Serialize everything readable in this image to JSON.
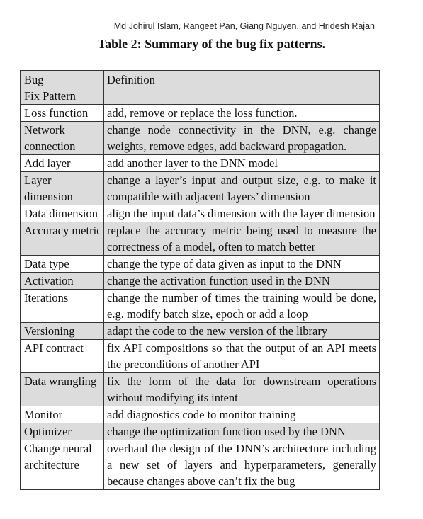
{
  "running_header": "Md Johirul Islam, Rangeet Pan, Giang Nguyen, and Hridesh Rajan",
  "caption": "Table 2: Summary of the bug fix patterns.",
  "table": {
    "header": {
      "col1_line1": "Bug",
      "col1_line2": "Fix Pattern",
      "col2": "Definition"
    },
    "rows": [
      {
        "pattern": "Loss function",
        "definition": "add, remove or replace the loss function.",
        "shaded": false
      },
      {
        "pattern": "Network connection",
        "definition": "change node connectivity in the DNN, e.g. change weights, remove edges, add backward propagation.",
        "shaded": true
      },
      {
        "pattern": "Add layer",
        "definition": "add another layer to the DNN model",
        "shaded": false
      },
      {
        "pattern": "Layer dimension",
        "definition": "change a layer’s input and output size, e.g. to make it compatible with adjacent layers’ dimension",
        "shaded": true
      },
      {
        "pattern": "Data dimension",
        "definition": "align the input data’s dimension with the layer dimension",
        "shaded": false
      },
      {
        "pattern": "Accuracy metric",
        "definition": "replace the accuracy metric being used to measure the correctness of a model, often to match better",
        "shaded": true
      },
      {
        "pattern": "Data type",
        "definition": "change the type of data given as input to the DNN",
        "shaded": false
      },
      {
        "pattern": "Activation",
        "definition": "change the activation function used in the DNN",
        "shaded": true
      },
      {
        "pattern": "Iterations",
        "definition": "change the number of times the training would be done, e.g. modify batch size, epoch or add a loop",
        "shaded": false
      },
      {
        "pattern": "Versioning",
        "definition": "adapt the code to the new version of the library",
        "shaded": true
      },
      {
        "pattern": "API contract",
        "definition": "fix API compositions so that the output of an API meets the preconditions of another API",
        "shaded": false
      },
      {
        "pattern": "Data wrangling",
        "definition": "fix the form of the data for downstream operations without modifying its intent",
        "shaded": true
      },
      {
        "pattern": "Monitor",
        "definition": "add diagnostics code to monitor training",
        "shaded": false
      },
      {
        "pattern": "Optimizer",
        "definition": "change the optimization function used by the DNN",
        "shaded": true
      },
      {
        "pattern": "Change neural architecture",
        "definition": "overhaul the design of the DNN’s architecture in­cluding a new set of layers and hyperparameters, generally because changes above can’t fix the bug",
        "shaded": false
      }
    ]
  }
}
